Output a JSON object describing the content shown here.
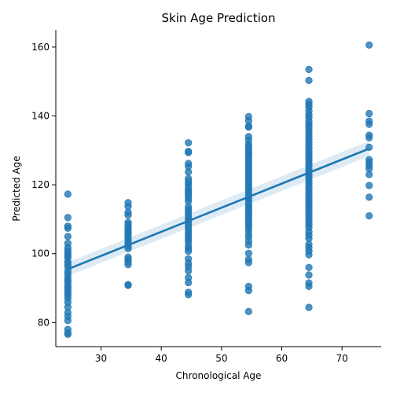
{
  "chart_data": {
    "type": "scatter",
    "title": "Skin Age Prediction",
    "xlabel": "Chronological Age",
    "ylabel": "Predicted Age",
    "xlim": [
      22.5,
      76.5
    ],
    "ylim": [
      73,
      165
    ],
    "xticks": [
      30,
      40,
      50,
      60,
      70
    ],
    "yticks": [
      80,
      100,
      120,
      140,
      160
    ],
    "grid": false,
    "colors": {
      "points": "#1f77b4",
      "line": "#1f77b4"
    },
    "regression": {
      "x": [
        24.5,
        74.5
      ],
      "y": [
        95.5,
        130.5
      ],
      "ci_lower": [
        93.5,
        128.3
      ],
      "ci_upper": [
        97.5,
        132.7
      ]
    },
    "series": [
      {
        "x": 24.5,
        "y": [
          117.3,
          110.5,
          108,
          107.4,
          105,
          103,
          101.7,
          100.8,
          100.1,
          99.4,
          98.9,
          97.7,
          97,
          96.2,
          95,
          94.1,
          93.1,
          92.3,
          91.7,
          90.8,
          90.1,
          89.5,
          88.6,
          87.9,
          87,
          85.9,
          84.5,
          82.9,
          81.8,
          80.6,
          78,
          77,
          76.6
        ]
      },
      {
        "x": 34.5,
        "y": [
          114.8,
          113.7,
          112,
          111.2,
          109.1,
          108.5,
          107.6,
          107,
          106.3,
          105.8,
          105,
          104.4,
          103.6,
          103,
          102.2,
          101.5,
          99,
          98.3,
          97.6,
          96.8,
          91,
          90.8
        ]
      },
      {
        "x": 44.5,
        "y": [
          132.2,
          129.7,
          129.4,
          126.2,
          125.3,
          123.7,
          121.8,
          120.9,
          120.1,
          119.1,
          118.3,
          117.6,
          117,
          116.1,
          115.2,
          113.6,
          112.8,
          111.9,
          111.1,
          110.2,
          109.5,
          108.6,
          107.8,
          106.9,
          106,
          105.2,
          104.3,
          103.5,
          102.4,
          101.5,
          100.7,
          98.5,
          97.2,
          96.2,
          95,
          93,
          91.6,
          88.8,
          88.1
        ]
      },
      {
        "x": 54.5,
        "y": [
          139.8,
          138.6,
          137,
          136.8,
          134,
          133,
          131.8,
          131,
          130.2,
          129.4,
          128.7,
          127.9,
          127,
          126.1,
          125.3,
          124.5,
          123.6,
          122.8,
          122,
          121.2,
          120.3,
          119.5,
          118.7,
          117.9,
          117,
          116.1,
          115.3,
          114.5,
          113.6,
          112.8,
          112,
          111.2,
          110.3,
          109.5,
          108.6,
          107.8,
          106.9,
          105.8,
          104.8,
          103.6,
          102.5,
          100.1,
          98.3,
          97.4,
          90.5,
          89.3,
          83.2
        ]
      },
      {
        "x": 64.5,
        "y": [
          153.5,
          150.3,
          144.2,
          143.4,
          142.6,
          141.5,
          140.4,
          139.6,
          138.5,
          137.6,
          136.8,
          135.9,
          135,
          134.1,
          133.2,
          132.3,
          131.5,
          130.6,
          129.7,
          128.9,
          128,
          127.2,
          126.3,
          125.5,
          124.6,
          123.8,
          122.9,
          122.1,
          121.2,
          120.4,
          119.5,
          118.7,
          117.8,
          117,
          116.1,
          115.3,
          114.4,
          113.6,
          112.7,
          111.9,
          111,
          110.2,
          109.3,
          108.5,
          107.6,
          106.4,
          105.4,
          104.4,
          102.7,
          101.8,
          100.8,
          99.7,
          96,
          93.8,
          91.5,
          90.5,
          84.4
        ]
      },
      {
        "x": 74.5,
        "y": [
          160.6,
          140.7,
          138.5,
          137.6,
          134.4,
          133.7,
          130.9,
          127.3,
          126.6,
          125.6,
          124.7,
          123,
          119.8,
          116.4,
          111
        ]
      }
    ]
  }
}
